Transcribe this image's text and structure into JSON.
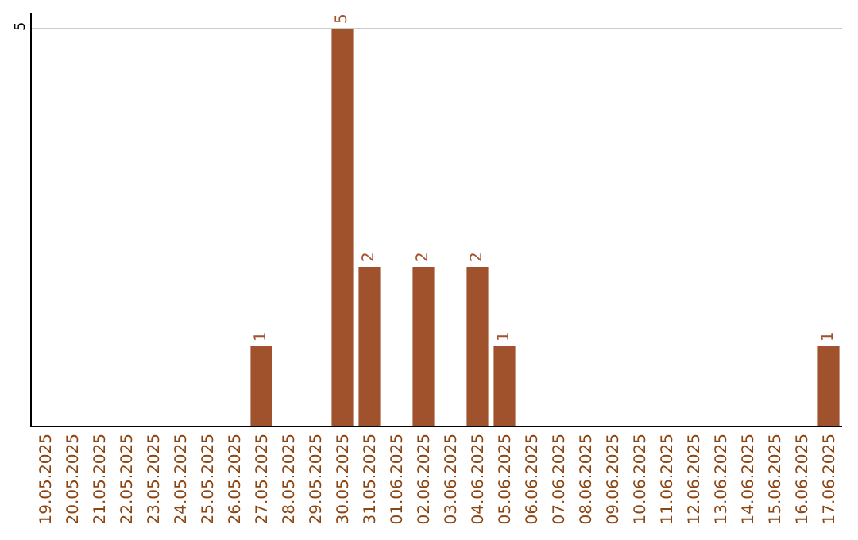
{
  "chart_data": {
    "type": "bar",
    "categories": [
      "19.05.2025",
      "20.05.2025",
      "21.05.2025",
      "22.05.2025",
      "23.05.2025",
      "24.05.2025",
      "25.05.2025",
      "26.05.2025",
      "27.05.2025",
      "28.05.2025",
      "29.05.2025",
      "30.05.2025",
      "31.05.2025",
      "01.06.2025",
      "02.06.2025",
      "03.06.2025",
      "04.06.2025",
      "05.06.2025",
      "06.06.2025",
      "07.06.2025",
      "08.06.2025",
      "09.06.2025",
      "10.06.2025",
      "11.06.2025",
      "12.06.2025",
      "13.06.2025",
      "14.06.2025",
      "15.06.2025",
      "16.06.2025",
      "17.06.2025"
    ],
    "values": [
      0,
      0,
      0,
      0,
      0,
      0,
      0,
      0,
      1,
      0,
      0,
      5,
      2,
      0,
      2,
      0,
      2,
      1,
      0,
      0,
      0,
      0,
      0,
      0,
      0,
      0,
      0,
      0,
      0,
      1
    ],
    "value_labels": [
      null,
      null,
      null,
      null,
      null,
      null,
      null,
      null,
      "1",
      null,
      null,
      "5",
      "2",
      null,
      "2",
      null,
      "2",
      "1",
      null,
      null,
      null,
      null,
      null,
      null,
      null,
      null,
      null,
      null,
      null,
      "1"
    ],
    "color": "#a0522d",
    "ylim": [
      0,
      5.2
    ],
    "yticks": [
      5
    ],
    "grid": "y"
  }
}
